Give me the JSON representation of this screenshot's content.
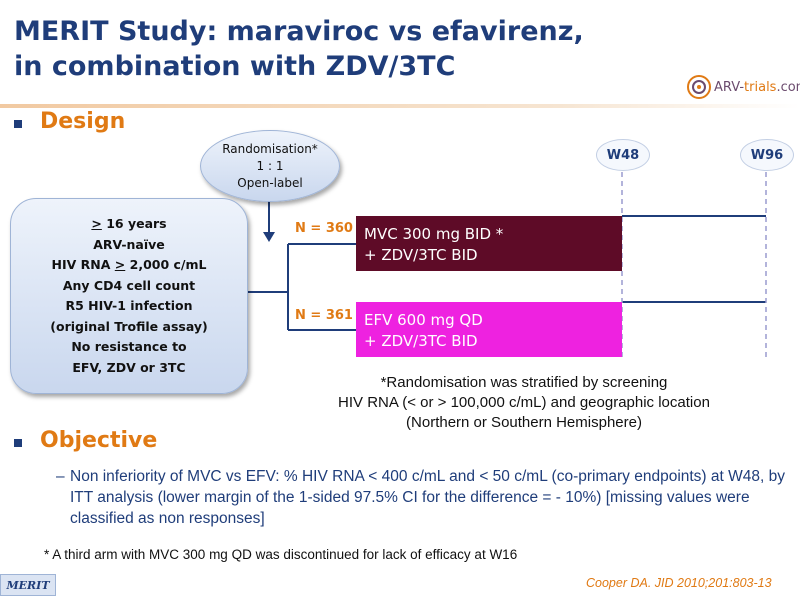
{
  "title": {
    "line1": "MERIT Study: maraviroc vs efavirenz,",
    "line2": "in combination with ZDV/3TC"
  },
  "logo": {
    "text_main": "ARV-",
    "text_accent": "trials",
    "text_suffix": ".com"
  },
  "sections": {
    "design": "Design",
    "objective": "Objective"
  },
  "randomisation": {
    "line1": "Randomisation*",
    "line2": "1 : 1",
    "line3": "Open-label"
  },
  "criteria": [
    "> 16 years",
    "ARV-naïve",
    "HIV RNA > 2,000 c/mL",
    "Any CD4 cell count",
    "R5 HIV-1 infection",
    "(original Trofile assay)",
    "No resistance to",
    "EFV, ZDV or 3TC"
  ],
  "arms": [
    {
      "n_label": "N = ",
      "n_value": "360",
      "line1": "MVC 300 mg BID *",
      "line2": "+ ZDV/3TC BID",
      "color": "#5e0b27"
    },
    {
      "n_label": "N = ",
      "n_value": "361",
      "line1": "EFV 600 mg QD",
      "line2": "+ ZDV/3TC BID",
      "color": "#ee22e0"
    }
  ],
  "timepoints": [
    "W48",
    "W96"
  ],
  "stratification_note": {
    "line1": "*Randomisation was stratified by screening",
    "line2": "HIV RNA (< or > 100,000 c/mL) and geographic location",
    "line3": "(Northern or Southern Hemisphere)"
  },
  "objective": {
    "dash": "–",
    "text": "Non inferiority of MVC vs EFV: % HIV RNA < 400 c/mL and < 50 c/mL (co-primary endpoints) at W48, by ITT analysis (lower margin of the 1-sided 97.5% CI for the difference = - 10%) [missing values were classified as non responses]"
  },
  "footnote": "* A third arm with MVC 300 mg QD was discontinued for lack of efficacy at W16",
  "footer_tag": "MERIT",
  "citation": "Cooper DA. JID 2010;201:803-13",
  "colors": {
    "title_blue": "#1f3d7a",
    "accent_orange": "#e07a14",
    "mvc_arm": "#5e0b27",
    "efv_arm": "#ee22e0",
    "line_blue": "#1f3d7a",
    "dashed_lilac": "#9a9ccf"
  }
}
